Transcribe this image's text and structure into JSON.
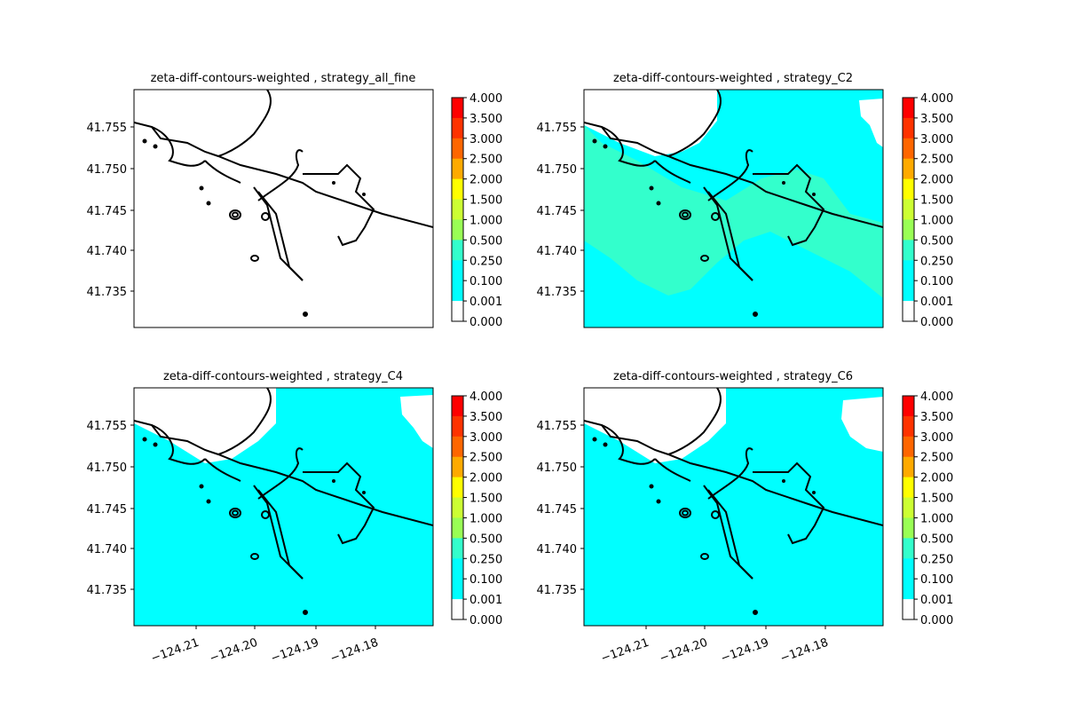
{
  "chart_data": [
    {
      "type": "heatmap",
      "title": "zeta-diff-contours-weighted , strategy_all_fine",
      "y_ticks": [
        "41.755",
        "41.750",
        "41.745",
        "41.740",
        "41.735"
      ],
      "x_ticks": [],
      "fill_level": "none",
      "fill_color": ""
    },
    {
      "type": "heatmap",
      "title": "zeta-diff-contours-weighted , strategy_C2",
      "y_ticks": [
        "41.755",
        "41.750",
        "41.745",
        "41.740",
        "41.735"
      ],
      "x_ticks": [],
      "fill_level": "0.001–0.250",
      "fill_color": "#00ffff"
    },
    {
      "type": "heatmap",
      "title": "zeta-diff-contours-weighted , strategy_C4",
      "y_ticks": [
        "41.755",
        "41.750",
        "41.745",
        "41.740",
        "41.735"
      ],
      "x_ticks": [
        "−124.21",
        "−124.20",
        "−124.19",
        "−124.18"
      ],
      "fill_level": "0.001–0.100",
      "fill_color": "#00ffff"
    },
    {
      "type": "heatmap",
      "title": "zeta-diff-contours-weighted , strategy_C6",
      "y_ticks": [
        "41.755",
        "41.750",
        "41.745",
        "41.740",
        "41.735"
      ],
      "x_ticks": [
        "−124.21",
        "−124.20",
        "−124.19",
        "−124.18"
      ],
      "fill_level": "0.001–0.100",
      "fill_color": "#00ffff"
    }
  ],
  "colorbar": {
    "ticks": [
      "4.000",
      "3.500",
      "3.000",
      "2.500",
      "2.000",
      "1.500",
      "1.000",
      "0.500",
      "0.250",
      "0.100",
      "0.001",
      "0.000"
    ],
    "colors": [
      "#ff0000",
      "#ff3300",
      "#ff6600",
      "#ffaa00",
      "#ffff00",
      "#ccff33",
      "#99ff55",
      "#33ffcc",
      "#00ffff",
      "#00ffff",
      "#ffffff"
    ]
  }
}
